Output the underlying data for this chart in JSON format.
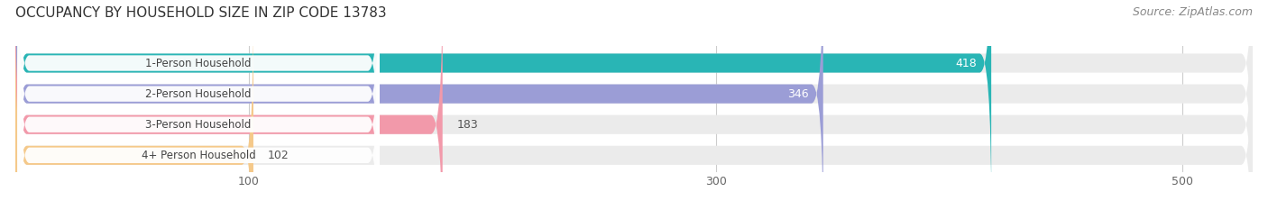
{
  "title": "OCCUPANCY BY HOUSEHOLD SIZE IN ZIP CODE 13783",
  "source": "Source: ZipAtlas.com",
  "categories": [
    "1-Person Household",
    "2-Person Household",
    "3-Person Household",
    "4+ Person Household"
  ],
  "values": [
    418,
    346,
    183,
    102
  ],
  "bar_colors": [
    "#29b5b5",
    "#9b9dd6",
    "#f299aa",
    "#f5c98a"
  ],
  "xlim": [
    0,
    530
  ],
  "xticks": [
    100,
    300,
    500
  ],
  "title_fontsize": 11,
  "source_fontsize": 9,
  "bar_height": 0.62,
  "background_color": "#ffffff",
  "bg_bar_color": "#ebebeb",
  "label_box_color": "#ffffff",
  "bar_max_display": 530
}
